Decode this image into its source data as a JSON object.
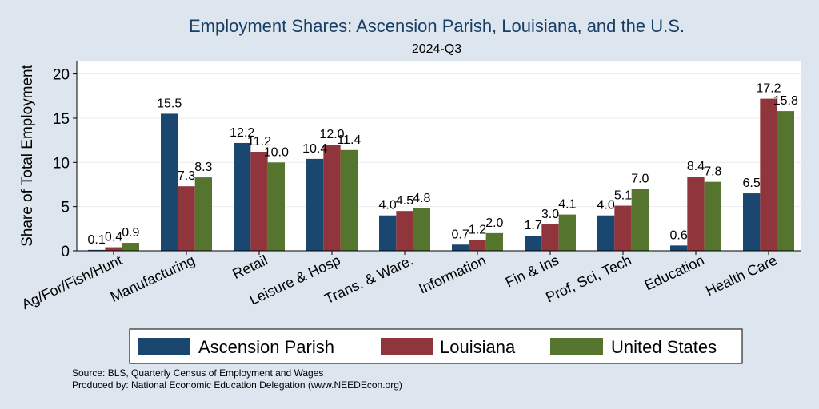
{
  "chart_data": {
    "type": "bar",
    "title": "Employment Shares: Ascension Parish, Louisiana, and the U.S.",
    "subtitle": "2024-Q3",
    "xlabel": "",
    "ylabel": "Share of Total Employment",
    "ylim": [
      0,
      21.5
    ],
    "yticks": [
      0,
      5,
      10,
      15,
      20
    ],
    "grid": true,
    "legend_position": "bottom",
    "categories": [
      "Ag/For/Fish/Hunt",
      "Manufacturing",
      "Retail",
      "Leisure & Hosp",
      "Trans. & Ware.",
      "Information",
      "Fin & Ins",
      "Prof, Sci, Tech",
      "Education",
      "Health Care"
    ],
    "series": [
      {
        "name": "Ascension Parish",
        "color": "#1a476f",
        "values": [
          0.1,
          15.5,
          12.2,
          10.4,
          4.0,
          0.7,
          1.7,
          4.0,
          0.6,
          6.5
        ]
      },
      {
        "name": "Louisiana",
        "color": "#90353b",
        "values": [
          0.4,
          7.3,
          11.2,
          12.0,
          4.5,
          1.2,
          3.0,
          5.1,
          8.4,
          17.2
        ]
      },
      {
        "name": "United States",
        "color": "#55752f",
        "values": [
          0.9,
          8.3,
          10.0,
          11.4,
          4.8,
          2.0,
          4.1,
          7.0,
          7.8,
          15.8
        ]
      }
    ]
  },
  "footer": {
    "source": "Source: BLS, Quarterly Census of Employment and Wages",
    "produced_by": "Produced by: National Economic Education Delegation (www.NEEDEcon.org)"
  }
}
